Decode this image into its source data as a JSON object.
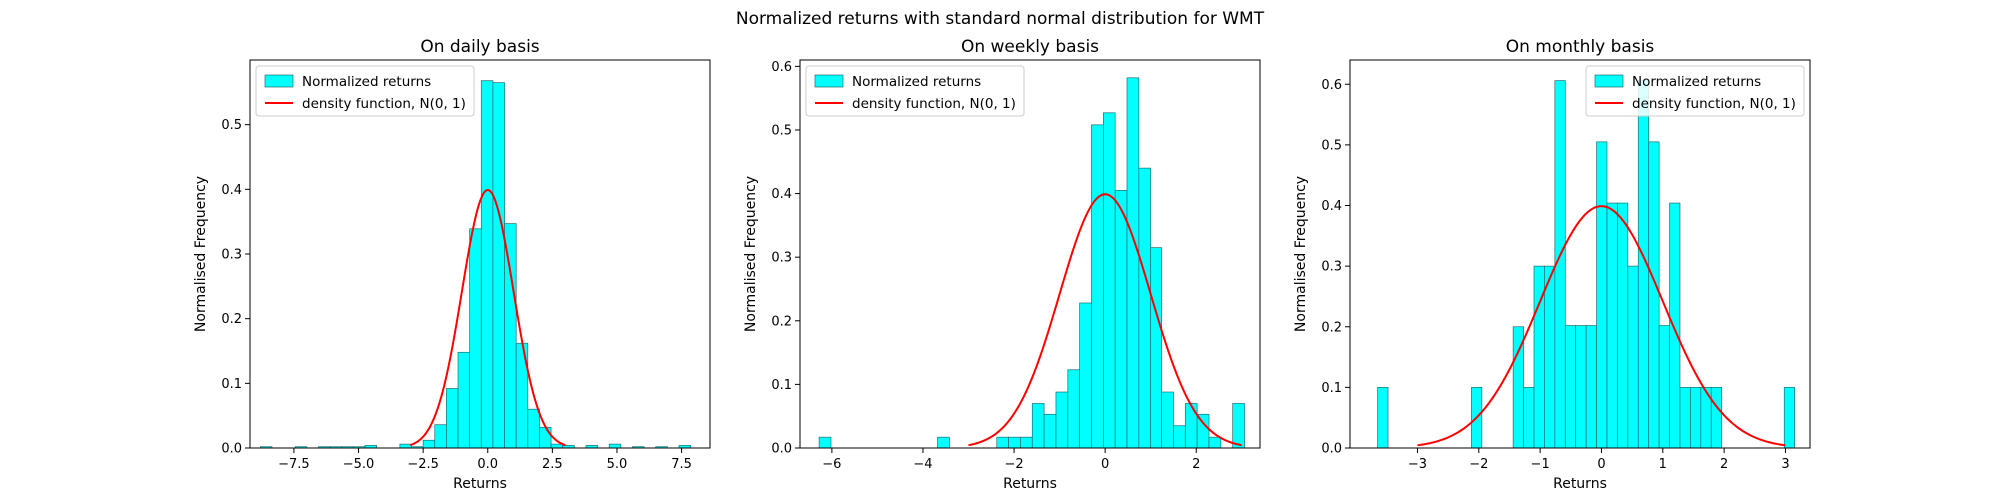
{
  "suptitle": "Normalized returns with standard normal distribution for WMT",
  "colors": {
    "bars": "#00ffff",
    "bar_edge": "#1f6f6f",
    "curve": "#ff0000"
  },
  "legend": {
    "bars_label": "Normalized returns",
    "curve_label": "density function, N(0, 1)"
  },
  "chart_data": [
    {
      "type": "bar",
      "title": "On daily basis",
      "xlabel": "Returns",
      "ylabel": "Normalised Frequency",
      "xlim": [
        -9.2,
        8.6
      ],
      "ylim": [
        0,
        0.6
      ],
      "xticks": [
        -7.5,
        -5.0,
        -2.5,
        0.0,
        2.5,
        5.0,
        7.5
      ],
      "xtick_labels": [
        "−7.5",
        "−5.0",
        "−2.5",
        "0.0",
        "2.5",
        "5.0",
        "7.5"
      ],
      "yticks": [
        0.0,
        0.1,
        0.2,
        0.3,
        0.4,
        0.5
      ],
      "ytick_labels": [
        "0.0",
        "0.1",
        "0.2",
        "0.3",
        "0.4",
        "0.5"
      ],
      "bin_edges": [
        -8.8,
        -8.35,
        -7.9,
        -7.45,
        -7.0,
        -6.55,
        -6.1,
        -5.65,
        -5.2,
        -4.75,
        -4.3,
        -3.85,
        -3.4,
        -2.95,
        -2.5,
        -2.05,
        -1.6,
        -1.15,
        -0.7,
        -0.25,
        0.2,
        0.65,
        1.1,
        1.55,
        2.0,
        2.45,
        2.9,
        3.35,
        3.8,
        4.25,
        4.7,
        5.15,
        5.6,
        6.05,
        6.5,
        6.95,
        7.4,
        7.85
      ],
      "values": [
        0.002,
        0,
        0,
        0.002,
        0,
        0.002,
        0.002,
        0.002,
        0.002,
        0.004,
        0,
        0,
        0.006,
        0.002,
        0.012,
        0.036,
        0.092,
        0.148,
        0.339,
        0.568,
        0.565,
        0.347,
        0.162,
        0.06,
        0.032,
        0.006,
        0.004,
        0,
        0.004,
        0,
        0.006,
        0,
        0.002,
        0,
        0.002,
        0,
        0.004
      ],
      "legend_position": "upper left",
      "curve": {
        "label": "density function, N(0, 1)",
        "x_range": [
          -3,
          3
        ]
      }
    },
    {
      "type": "bar",
      "title": "On weekly basis",
      "xlabel": "Returns",
      "ylabel": "Normalised Frequency",
      "xlim": [
        -6.7,
        3.4
      ],
      "ylim": [
        0,
        0.61
      ],
      "xticks": [
        -6,
        -4,
        -2,
        0,
        2
      ],
      "xtick_labels": [
        "−6",
        "−4",
        "−2",
        "0",
        "2"
      ],
      "yticks": [
        0.0,
        0.1,
        0.2,
        0.3,
        0.4,
        0.5,
        0.6
      ],
      "ytick_labels": [
        "0.0",
        "0.1",
        "0.2",
        "0.3",
        "0.4",
        "0.5",
        "0.6"
      ],
      "bin_edges": [
        -6.28,
        -6.02,
        -5.76,
        -5.5,
        -5.24,
        -4.98,
        -4.72,
        -4.46,
        -4.2,
        -3.94,
        -3.68,
        -3.42,
        -3.16,
        -2.9,
        -2.64,
        -2.38,
        -2.12,
        -1.86,
        -1.6,
        -1.34,
        -1.08,
        -0.82,
        -0.56,
        -0.3,
        -0.04,
        0.22,
        0.48,
        0.74,
        1.0,
        1.24,
        1.5,
        1.76,
        2.02,
        2.28,
        2.54,
        2.8,
        3.06
      ],
      "values": [
        0.017,
        0,
        0,
        0,
        0,
        0,
        0,
        0,
        0,
        0,
        0.017,
        0,
        0,
        0,
        0,
        0.017,
        0.017,
        0.017,
        0.07,
        0.053,
        0.088,
        0.123,
        0.228,
        0.508,
        0.527,
        0.405,
        0.582,
        0.44,
        0.315,
        0.088,
        0.035,
        0.07,
        0.053,
        0.017,
        0,
        0.07,
        0.035
      ],
      "legend_position": "upper left",
      "curve": {
        "label": "density function, N(0, 1)",
        "x_range": [
          -3,
          3
        ]
      }
    },
    {
      "type": "bar",
      "title": "On monthly basis",
      "xlabel": "Returns",
      "ylabel": "Normalised Frequency",
      "xlim": [
        -4.1,
        3.4
      ],
      "ylim": [
        0,
        0.64
      ],
      "xticks": [
        -3,
        -2,
        -1,
        0,
        1,
        2,
        3
      ],
      "xtick_labels": [
        "−3",
        "−2",
        "−1",
        "0",
        "1",
        "2",
        "3"
      ],
      "yticks": [
        0.0,
        0.1,
        0.2,
        0.3,
        0.4,
        0.5,
        0.6
      ],
      "ytick_labels": [
        "0.0",
        "0.1",
        "0.2",
        "0.3",
        "0.4",
        "0.5",
        "0.6"
      ],
      "bin_edges": [
        -3.65,
        -3.48,
        -3.31,
        -3.14,
        -2.97,
        -2.8,
        -2.63,
        -2.46,
        -2.29,
        -2.12,
        -1.95,
        -1.78,
        -1.61,
        -1.44,
        -1.27,
        -1.1,
        -0.93,
        -0.76,
        -0.59,
        -0.42,
        -0.25,
        -0.08,
        0.09,
        0.26,
        0.43,
        0.6,
        0.77,
        0.94,
        1.11,
        1.28,
        1.45,
        1.62,
        1.79,
        1.96,
        2.13,
        2.3,
        2.47,
        2.64,
        2.81,
        2.98,
        3.15
      ],
      "values": [
        0.1,
        0,
        0,
        0,
        0,
        0,
        0,
        0,
        0,
        0.1,
        0,
        0,
        0,
        0.2,
        0.1,
        0.3,
        0.3,
        0.606,
        0.202,
        0.202,
        0.202,
        0.505,
        0.404,
        0.404,
        0.3,
        0.606,
        0.505,
        0.202,
        0.404,
        0.1,
        0.1,
        0.1,
        0.1,
        0,
        0,
        0,
        0,
        0,
        0,
        0.1
      ],
      "legend_position": "upper right",
      "curve": {
        "label": "density function, N(0, 1)",
        "x_range": [
          -3,
          3
        ]
      }
    }
  ]
}
